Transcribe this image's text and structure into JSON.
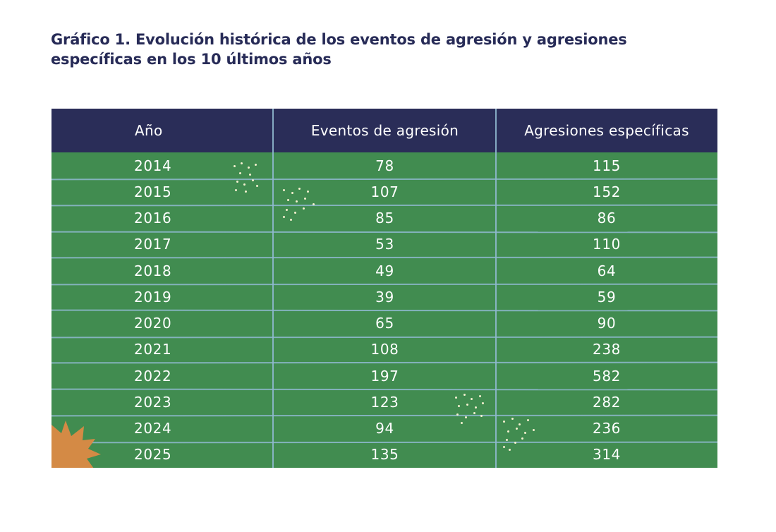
{
  "title": {
    "line1": "Gráfico 1. Evolución histórica de los eventos de agresión y agresiones",
    "line2": "específicas en los 10 últimos años"
  },
  "colors": {
    "header_bg": "#2a2d58",
    "table_bg": "#418c50",
    "grid_lines": "#8fb8cf",
    "title_text": "#272b57",
    "decor_orange": "#d48a45",
    "decor_dots": "#f4f0cf"
  },
  "chart_data": {
    "type": "table",
    "title": "Gráfico 1. Evolución histórica de los eventos de agresión y agresiones específicas en los 10 últimos años",
    "columns": [
      "Año",
      "Eventos de agresión",
      "Agresiones específicas"
    ],
    "rows": [
      [
        "2014",
        "78",
        "115"
      ],
      [
        "2015",
        "107",
        "152"
      ],
      [
        "2016",
        "85",
        "86"
      ],
      [
        "2017",
        "53",
        "110"
      ],
      [
        "2018",
        "49",
        "64"
      ],
      [
        "2019",
        "39",
        "59"
      ],
      [
        "2020",
        "65",
        "90"
      ],
      [
        "2021",
        "108",
        "238"
      ],
      [
        "2022",
        "197",
        "582"
      ],
      [
        "2023",
        "123",
        "282"
      ],
      [
        "2024",
        "94",
        "236"
      ],
      [
        "2025",
        "135",
        "314"
      ]
    ]
  }
}
